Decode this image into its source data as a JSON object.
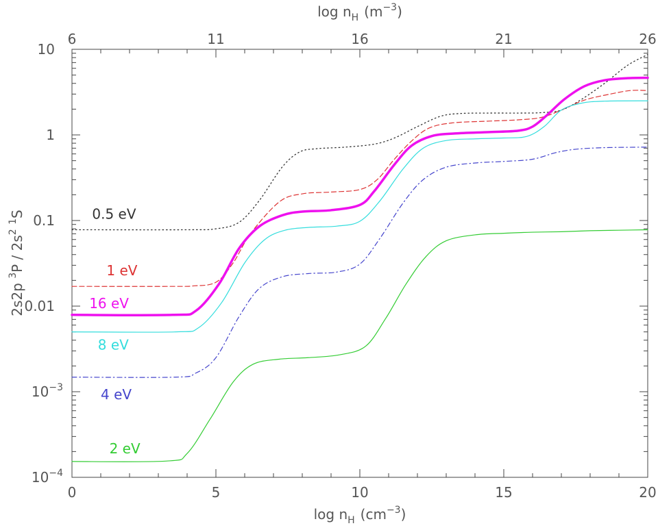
{
  "chart_data": {
    "type": "line",
    "xlabel_bottom": {
      "prefix": "log n",
      "sub": "H",
      "unit": "(cm",
      "sup": "−3",
      "close": ")"
    },
    "xlabel_top": {
      "prefix": "log n",
      "sub": "H",
      "unit": "(m",
      "sup": "−3",
      "close": ")"
    },
    "ylabel": {
      "a": "2s2p ",
      "a_sup": "3",
      "b": "P  /  2s",
      "b_sup": "2",
      "c": " ",
      "c_sup": "1",
      "d": "S"
    },
    "y_scale": "log",
    "xlim": [
      0,
      20
    ],
    "ylim": [
      0.0001,
      10
    ],
    "top_xlim": [
      6,
      26
    ],
    "x_ticks": [
      0,
      5,
      10,
      15,
      20
    ],
    "x_tick_labels": [
      "0",
      "5",
      "10",
      "15",
      "20"
    ],
    "top_ticks": [
      6,
      11,
      16,
      21,
      26
    ],
    "top_tick_labels": [
      "6",
      "11",
      "16",
      "21",
      "26"
    ],
    "y_ticks": [
      {
        "value": 10,
        "label": "10"
      },
      {
        "value": 1,
        "label": "1"
      },
      {
        "value": 0.1,
        "label": "0.1"
      },
      {
        "value": 0.01,
        "label": "0.01"
      },
      {
        "value": 0.001,
        "label": "10",
        "sup": "−3"
      },
      {
        "value": 0.0001,
        "label": "10",
        "sup": "−4"
      }
    ],
    "series": [
      {
        "name": "0.5 eV",
        "color": "#333333",
        "dash": "1.5,4",
        "width": 1.3,
        "label_at": [
          0.7,
          0.105
        ],
        "points": [
          [
            0,
            0.078
          ],
          [
            4,
            0.078
          ],
          [
            5,
            0.08
          ],
          [
            5.8,
            0.095
          ],
          [
            6.5,
            0.17
          ],
          [
            7.3,
            0.42
          ],
          [
            7.9,
            0.63
          ],
          [
            8.5,
            0.69
          ],
          [
            9.5,
            0.72
          ],
          [
            10.5,
            0.78
          ],
          [
            11.2,
            0.92
          ],
          [
            12,
            1.25
          ],
          [
            12.8,
            1.65
          ],
          [
            13.5,
            1.78
          ],
          [
            14.5,
            1.8
          ],
          [
            15.5,
            1.8
          ],
          [
            16.3,
            1.82
          ],
          [
            17,
            1.95
          ],
          [
            17.7,
            2.6
          ],
          [
            18.5,
            4.0
          ],
          [
            19.3,
            6.5
          ],
          [
            20,
            8.7
          ]
        ]
      },
      {
        "name": "1 eV",
        "color": "#dd3333",
        "dash": "7,4",
        "width": 1.2,
        "label_at": [
          1.2,
          0.023
        ],
        "points": [
          [
            0,
            0.017
          ],
          [
            3.5,
            0.017
          ],
          [
            4.2,
            0.0172
          ],
          [
            5,
            0.019
          ],
          [
            5.6,
            0.032
          ],
          [
            6.2,
            0.07
          ],
          [
            7.2,
            0.165
          ],
          [
            8,
            0.205
          ],
          [
            9,
            0.215
          ],
          [
            10,
            0.23
          ],
          [
            10.6,
            0.3
          ],
          [
            11.2,
            0.52
          ],
          [
            11.8,
            0.85
          ],
          [
            12.4,
            1.2
          ],
          [
            13.2,
            1.38
          ],
          [
            14.5,
            1.45
          ],
          [
            15.5,
            1.5
          ],
          [
            16.3,
            1.6
          ],
          [
            17,
            1.95
          ],
          [
            17.8,
            2.55
          ],
          [
            18.7,
            3.0
          ],
          [
            19.4,
            3.3
          ],
          [
            20,
            3.3
          ]
        ]
      },
      {
        "name": "16 eV",
        "color": "#ee11ee",
        "dash": "",
        "width": 3.5,
        "label_at": [
          0.6,
          0.0095
        ],
        "points": [
          [
            0,
            0.0079
          ],
          [
            3.5,
            0.0079
          ],
          [
            4.3,
            0.0088
          ],
          [
            5.1,
            0.018
          ],
          [
            5.8,
            0.047
          ],
          [
            6.5,
            0.085
          ],
          [
            7.3,
            0.115
          ],
          [
            8,
            0.127
          ],
          [
            9,
            0.132
          ],
          [
            10,
            0.152
          ],
          [
            10.5,
            0.22
          ],
          [
            11.2,
            0.45
          ],
          [
            11.8,
            0.75
          ],
          [
            12.5,
            0.97
          ],
          [
            13.3,
            1.04
          ],
          [
            14.5,
            1.08
          ],
          [
            15.5,
            1.12
          ],
          [
            16,
            1.25
          ],
          [
            16.5,
            1.7
          ],
          [
            17.1,
            2.6
          ],
          [
            17.8,
            3.7
          ],
          [
            18.5,
            4.35
          ],
          [
            19.3,
            4.6
          ],
          [
            20,
            4.65
          ]
        ]
      },
      {
        "name": "8 eV",
        "color": "#33dddd",
        "dash": "",
        "width": 1.2,
        "label_at": [
          0.9,
          0.0031
        ],
        "points": [
          [
            0,
            0.005
          ],
          [
            3.6,
            0.005
          ],
          [
            4.4,
            0.0056
          ],
          [
            5.2,
            0.011
          ],
          [
            6,
            0.032
          ],
          [
            6.7,
            0.06
          ],
          [
            7.4,
            0.077
          ],
          [
            8.2,
            0.083
          ],
          [
            9.2,
            0.086
          ],
          [
            10,
            0.098
          ],
          [
            10.7,
            0.17
          ],
          [
            11.5,
            0.4
          ],
          [
            12.2,
            0.7
          ],
          [
            13,
            0.86
          ],
          [
            14,
            0.9
          ],
          [
            15,
            0.92
          ],
          [
            15.8,
            0.96
          ],
          [
            16.4,
            1.25
          ],
          [
            17,
            1.95
          ],
          [
            17.7,
            2.35
          ],
          [
            18.5,
            2.48
          ],
          [
            20,
            2.5
          ]
        ]
      },
      {
        "name": "4 eV",
        "color": "#4444cc",
        "dash": "7,4,1.5,4",
        "width": 1.2,
        "label_at": [
          1.0,
          0.00082
        ],
        "points": [
          [
            0,
            0.00148
          ],
          [
            3.6,
            0.00148
          ],
          [
            4.3,
            0.00165
          ],
          [
            5,
            0.0025
          ],
          [
            5.8,
            0.0075
          ],
          [
            6.5,
            0.016
          ],
          [
            7.3,
            0.022
          ],
          [
            8.2,
            0.024
          ],
          [
            9.2,
            0.025
          ],
          [
            10,
            0.031
          ],
          [
            10.7,
            0.062
          ],
          [
            11.5,
            0.16
          ],
          [
            12.2,
            0.3
          ],
          [
            13,
            0.42
          ],
          [
            14,
            0.47
          ],
          [
            15,
            0.49
          ],
          [
            16,
            0.52
          ],
          [
            16.8,
            0.62
          ],
          [
            17.5,
            0.68
          ],
          [
            18.5,
            0.71
          ],
          [
            20,
            0.72
          ]
        ]
      },
      {
        "name": "2 eV",
        "color": "#33cc33",
        "dash": "",
        "width": 1.2,
        "label_at": [
          1.3,
          0.00019
        ],
        "points": [
          [
            0,
            0.000153
          ],
          [
            3.3,
            0.000155
          ],
          [
            4,
            0.00019
          ],
          [
            4.8,
            0.00048
          ],
          [
            5.6,
            0.0013
          ],
          [
            6.3,
            0.0021
          ],
          [
            7.2,
            0.0024
          ],
          [
            8.2,
            0.0025
          ],
          [
            9.3,
            0.0027
          ],
          [
            10.2,
            0.0034
          ],
          [
            10.9,
            0.0072
          ],
          [
            11.6,
            0.018
          ],
          [
            12.3,
            0.038
          ],
          [
            13,
            0.058
          ],
          [
            14,
            0.068
          ],
          [
            15,
            0.071
          ],
          [
            16,
            0.073
          ],
          [
            17,
            0.074
          ],
          [
            18,
            0.076
          ],
          [
            19,
            0.077
          ],
          [
            20,
            0.078
          ]
        ]
      }
    ]
  }
}
